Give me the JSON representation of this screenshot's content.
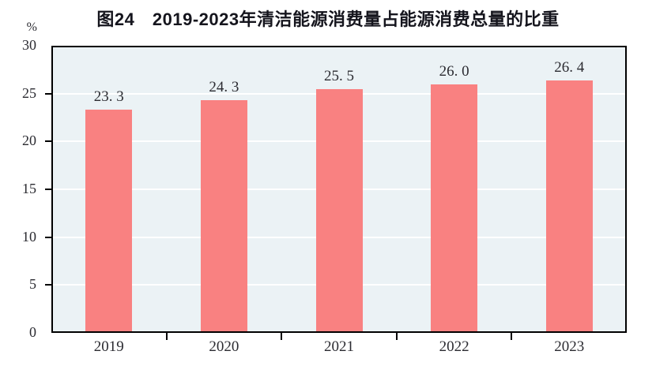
{
  "page": {
    "background": "#ffffff"
  },
  "chart": {
    "colors": {
      "bar": "#f98181",
      "plot_bg": "#ebf2f5",
      "grid": "#ffffff",
      "axis": "#000000",
      "title_text": "#15151d",
      "label_text": "#2b2b31"
    }
  },
  "chart_data": {
    "type": "bar",
    "title": "图24　2019-2023年清洁能源消费量占能源消费总量的比重",
    "unit_label": "%",
    "categories": [
      "2019",
      "2020",
      "2021",
      "2022",
      "2023"
    ],
    "values": [
      23.3,
      24.3,
      25.5,
      26.0,
      26.4
    ],
    "value_labels": [
      "23. 3",
      "24. 3",
      "25. 5",
      "26. 0",
      "26. 4"
    ],
    "xlabel": "",
    "ylabel": "%",
    "ylim": [
      0,
      30
    ],
    "yticks": [
      0,
      5,
      10,
      15,
      20,
      25,
      30
    ],
    "grid": true,
    "gridline_color": "white",
    "legend": false,
    "legend_position": "none",
    "plot_background": "light-blue-grey",
    "bar_label_position": "above-bar"
  }
}
